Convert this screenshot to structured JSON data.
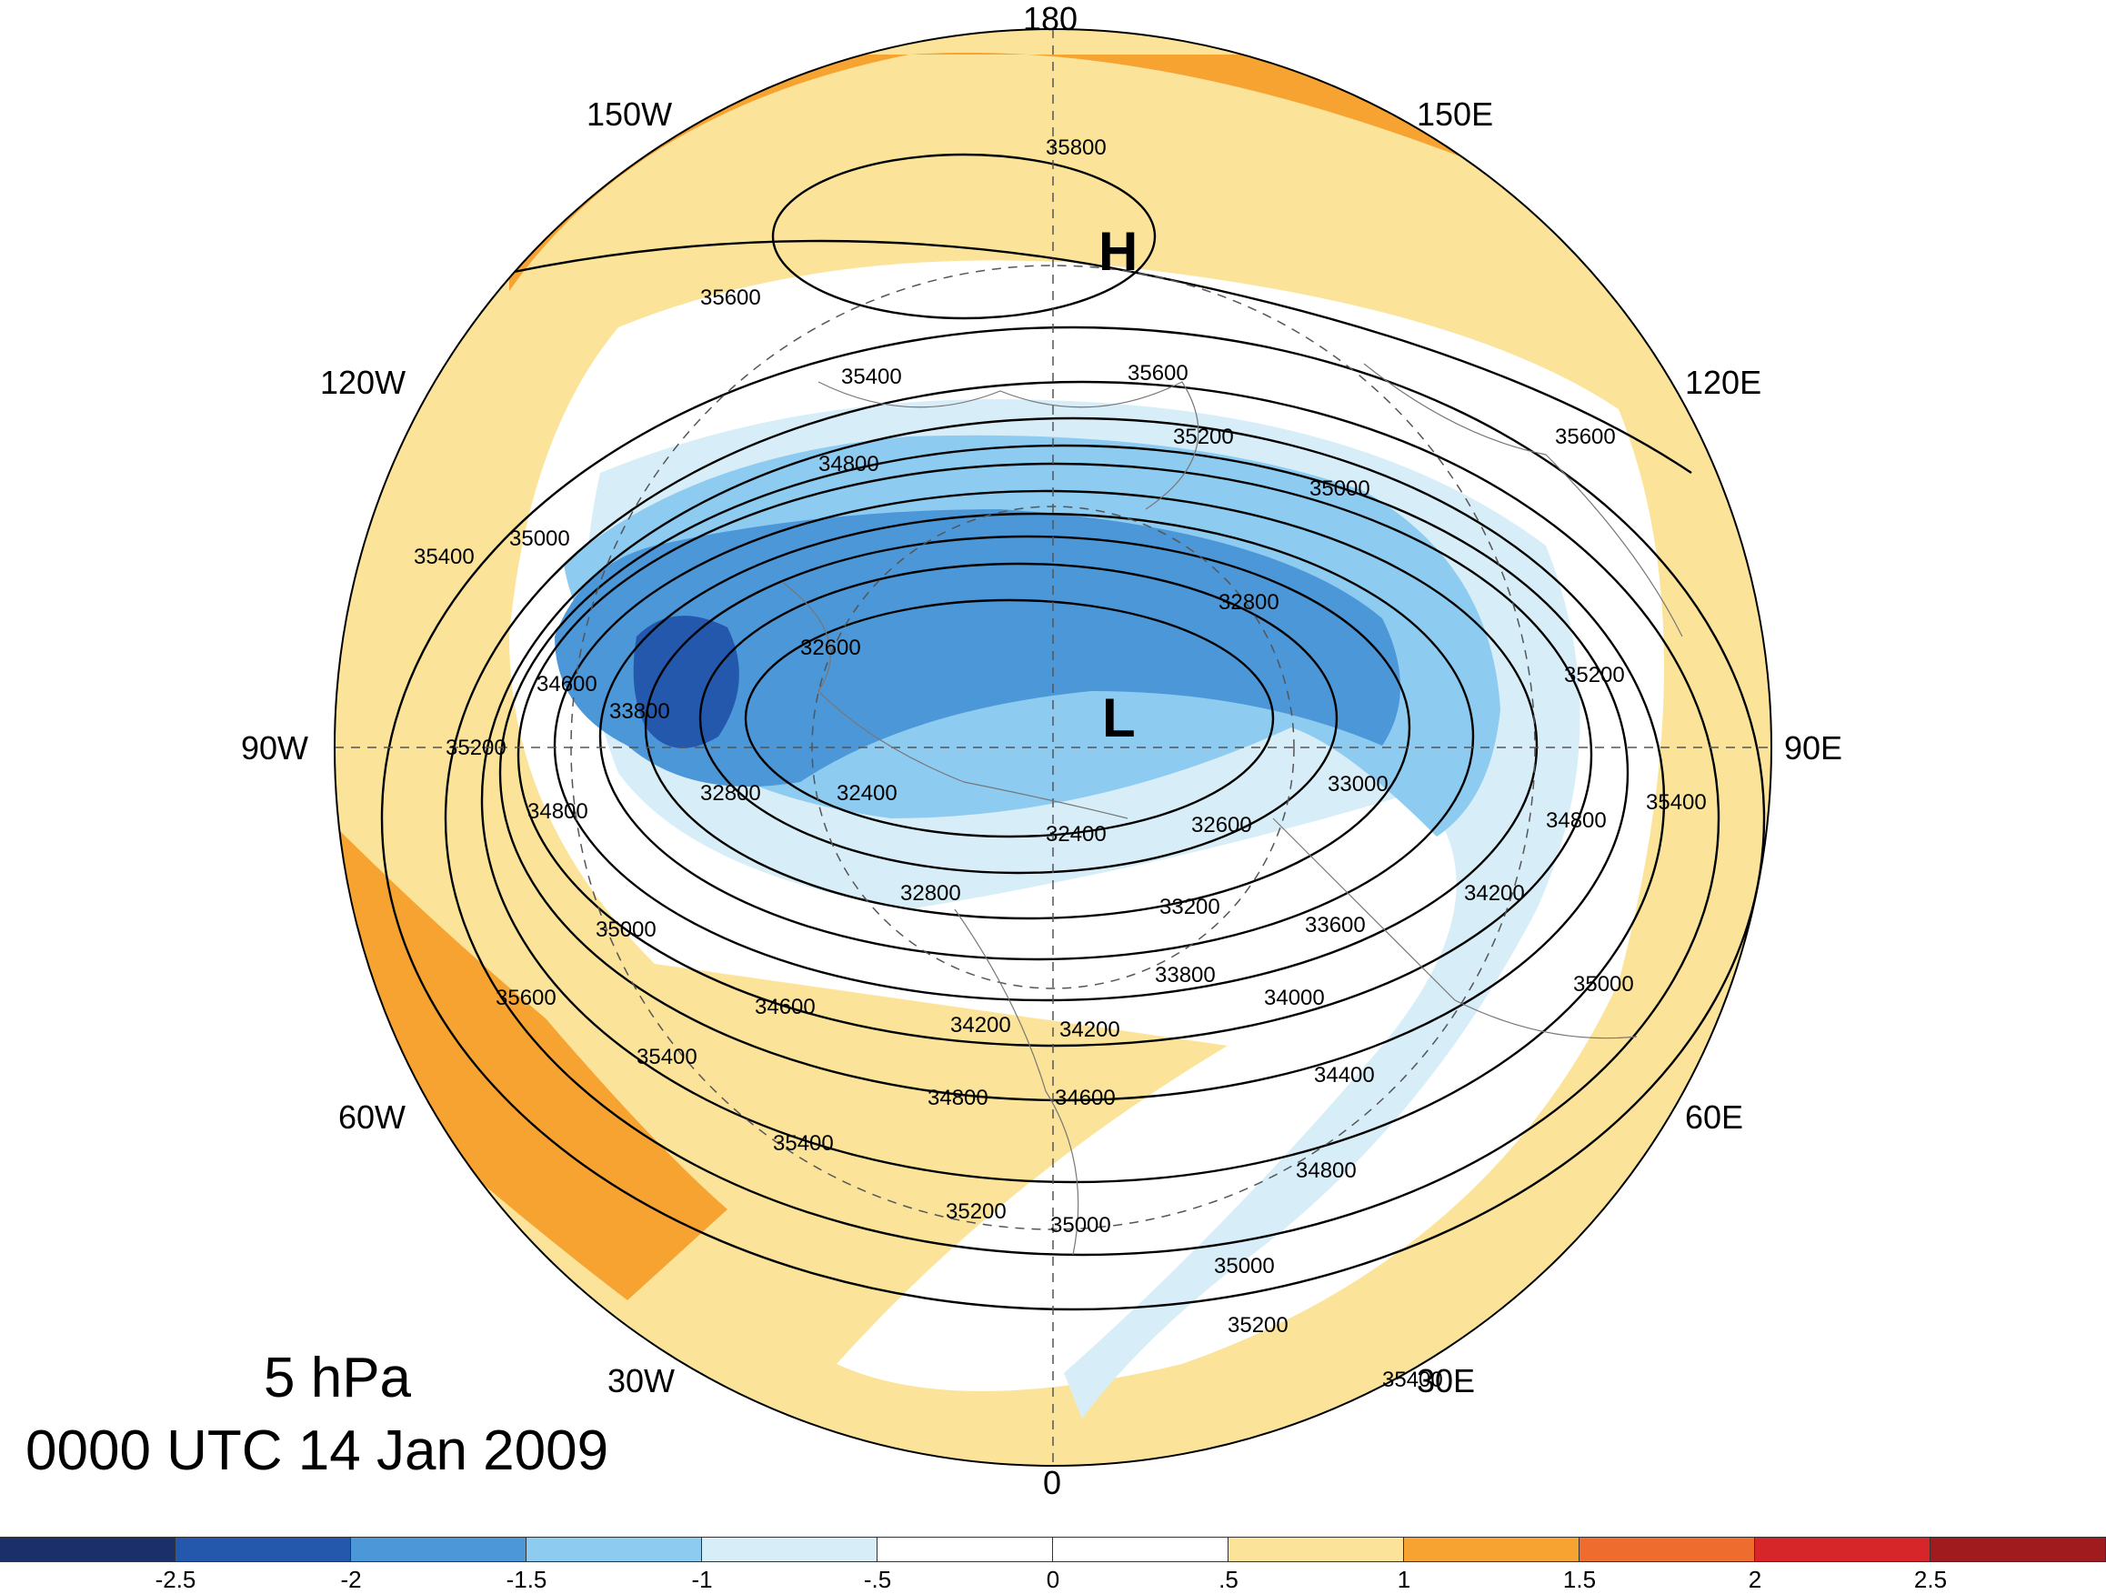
{
  "title": {
    "level": "5 hPa",
    "time": "0000 UTC 14 Jan 2009"
  },
  "longitude_labels": [
    {
      "text": "180",
      "name": "lon-label-180"
    },
    {
      "text": "150W",
      "name": "lon-label-150w"
    },
    {
      "text": "150E",
      "name": "lon-label-150e"
    },
    {
      "text": "120W",
      "name": "lon-label-120w"
    },
    {
      "text": "120E",
      "name": "lon-label-120e"
    },
    {
      "text": "90W",
      "name": "lon-label-90w"
    },
    {
      "text": "90E",
      "name": "lon-label-90e"
    },
    {
      "text": "60W",
      "name": "lon-label-60w"
    },
    {
      "text": "60E",
      "name": "lon-label-60e"
    },
    {
      "text": "30W",
      "name": "lon-label-30w"
    },
    {
      "text": "30E",
      "name": "lon-label-30e"
    },
    {
      "text": "0",
      "name": "lon-label-0"
    }
  ],
  "centers": {
    "high": "H",
    "low": "L"
  },
  "contour_labels": [
    "35800",
    "35600",
    "35400",
    "35600",
    "35200",
    "35600",
    "35000",
    "34800",
    "35000",
    "35400",
    "35200",
    "34600",
    "33800",
    "32600",
    "32800",
    "35200",
    "34800",
    "32800",
    "32400",
    "32400",
    "32600",
    "33000",
    "34800",
    "35400",
    "34200",
    "32800",
    "33200",
    "33600",
    "35000",
    "35000",
    "34600",
    "33800",
    "34000",
    "34200",
    "34200",
    "35600",
    "35400",
    "34400",
    "34800",
    "34600",
    "34800",
    "35400",
    "35200",
    "35000",
    "35000",
    "35200",
    "35400"
  ],
  "colorbar": {
    "colors": [
      "#1b2f6b",
      "#2358ad",
      "#4b97d7",
      "#8dcbf0",
      "#d7eef9",
      "#ffffff",
      "#ffffff",
      "#fbe49a",
      "#f6a331",
      "#ee6c2d",
      "#d7262a",
      "#a01b1e"
    ],
    "labels": [
      "-2.5",
      "-2",
      "-1.5",
      "-1",
      "-.5",
      "0",
      ".5",
      "1",
      "1.5",
      "2",
      "2.5"
    ]
  }
}
